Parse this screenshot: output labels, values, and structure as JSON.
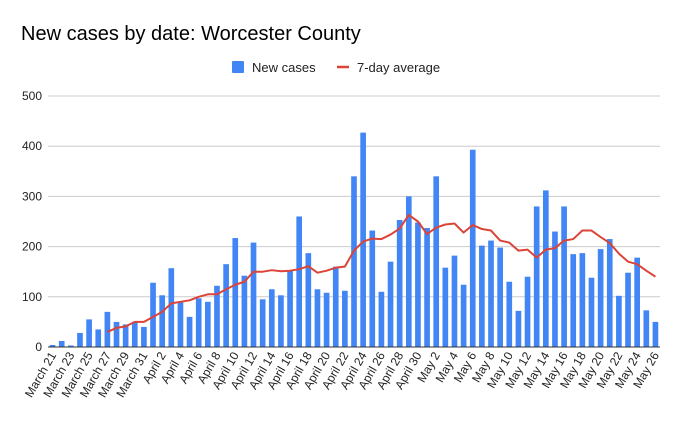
{
  "chart_data": {
    "type": "bar",
    "title": "New cases by date: Worcester County",
    "xlabel": "",
    "ylabel": "",
    "ylim": [
      0,
      500
    ],
    "yticks": [
      0,
      100,
      200,
      300,
      400,
      500
    ],
    "grid": true,
    "legend_position": "top",
    "colors": {
      "bar": "#4285f4",
      "line": "#db4437"
    },
    "categories": [
      "March 21",
      "March 22",
      "March 23",
      "March 24",
      "March 25",
      "March 26",
      "March 27",
      "March 28",
      "March 29",
      "March 30",
      "March 31",
      "April 1",
      "April 2",
      "April 3",
      "April 4",
      "April 5",
      "April 6",
      "April 7",
      "April 8",
      "April 9",
      "April 10",
      "April 11",
      "April 12",
      "April 13",
      "April 14",
      "April 15",
      "April 16",
      "April 17",
      "April 18",
      "April 19",
      "April 20",
      "April 21",
      "April 22",
      "April 23",
      "April 24",
      "April 25",
      "April 26",
      "April 27",
      "April 28",
      "April 29",
      "April 30",
      "May 1",
      "May 2",
      "May 3",
      "May 4",
      "May 5",
      "May 6",
      "May 7",
      "May 8",
      "May 9",
      "May 10",
      "May 11",
      "May 12",
      "May 13",
      "May 14",
      "May 15",
      "May 16",
      "May 17",
      "May 18",
      "May 19",
      "May 20",
      "May 21",
      "May 22",
      "May 23",
      "May 24",
      "May 25",
      "May 26"
    ],
    "x_tick_labels": [
      "March 21",
      "",
      "March 23",
      "",
      "March 25",
      "",
      "March 27",
      "",
      "March 29",
      "",
      "March 31",
      "",
      "April 2",
      "",
      "April 4",
      "",
      "April 6",
      "",
      "April 8",
      "",
      "April 10",
      "",
      "April 12",
      "",
      "April 14",
      "",
      "April 16",
      "",
      "April 18",
      "",
      "April 20",
      "",
      "April 22",
      "",
      "April 24",
      "",
      "April 26",
      "",
      "April 28",
      "",
      "April 30",
      "",
      "May 2",
      "",
      "May 4",
      "",
      "May 6",
      "",
      "May 8",
      "",
      "May 10",
      "",
      "May 12",
      "",
      "May 14",
      "",
      "May 16",
      "",
      "May 18",
      "",
      "May 20",
      "",
      "May 22",
      "",
      "May 24",
      "",
      "May 26"
    ],
    "series": [
      {
        "name": "New cases",
        "type": "bar",
        "values": [
          4,
          12,
          3,
          28,
          55,
          35,
          70,
          50,
          45,
          50,
          40,
          128,
          103,
          157,
          90,
          60,
          97,
          90,
          122,
          165,
          217,
          142,
          208,
          95,
          115,
          103,
          152,
          260,
          187,
          115,
          108,
          160,
          112,
          340,
          427,
          232,
          110,
          170,
          253,
          300,
          248,
          237,
          340,
          158,
          182,
          124,
          393,
          202,
          212,
          198,
          130,
          72,
          140,
          280,
          312,
          230,
          280,
          185,
          187,
          138,
          195,
          215,
          102,
          148,
          178,
          73,
          50
        ]
      },
      {
        "name": "7-day average",
        "type": "line",
        "values": [
          null,
          null,
          null,
          null,
          null,
          null,
          30,
          38,
          41,
          50,
          50,
          60,
          70,
          87,
          90,
          93,
          100,
          105,
          105,
          115,
          124,
          130,
          150,
          150,
          153,
          151,
          152,
          155,
          161,
          148,
          152,
          158,
          160,
          192,
          210,
          216,
          215,
          224,
          236,
          263,
          250,
          225,
          238,
          244,
          246,
          228,
          243,
          235,
          232,
          212,
          208,
          192,
          194,
          178,
          194,
          197,
          212,
          215,
          232,
          232,
          219,
          207,
          186,
          170,
          165,
          152,
          140
        ]
      }
    ]
  }
}
